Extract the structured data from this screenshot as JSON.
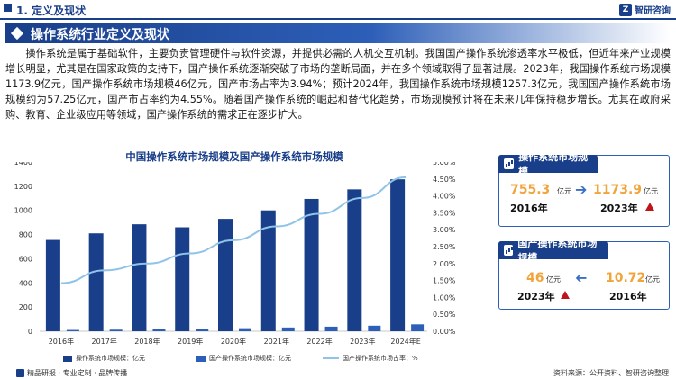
{
  "header": {
    "section": "1. 定义及现状",
    "brand": "智研咨询"
  },
  "title": "操作系统行业定义及现状",
  "paragraph": "操作系统是属于基础软件，主要负责管理硬件与软件资源，并提供必需的人机交互机制。我国国产操作系统渗透率水平极低，但近年来产业规模增长明显，尤其是在国家政策的支持下，国产操作系统逐渐突破了市场的垄断局面，并在多个领域取得了显著进展。2023年，我国操作系统市场规模1173.9亿元，国产操作系统市场规模46亿元，国产市场占率为3.94%；预计2024年，我国操作系统市场规模1257.3亿元，我国国产操作系统市场规模约为57.25亿元，国产市占率约为4.55%。随着国产操作系统的崛起和替代化趋势，市场规模预计将在未来几年保持稳步增长。尤其在政府采购、教育、企业级应用等领域，国产操作系统的需求正在逐步扩大。",
  "chart_data": {
    "type": "bar",
    "title": "中国操作系统市场规模及国产操作系统市场规模",
    "categories": [
      "2016年",
      "2017年",
      "2018年",
      "2019年",
      "2020年",
      "2021年",
      "2022年",
      "2023年",
      "2024年E"
    ],
    "series": [
      {
        "name": "操作系统市场规模：亿元",
        "type": "bar",
        "axis": "left",
        "color": "#1a3f8a",
        "values": [
          755.3,
          810,
          885,
          860,
          930,
          1000,
          1095,
          1173.9,
          1257.3
        ]
      },
      {
        "name": "国产操作系统市场规模：亿元",
        "type": "bar",
        "axis": "left",
        "color": "#2d5fb8",
        "values": [
          10.72,
          13,
          16,
          20,
          25,
          31,
          38,
          46,
          57.25
        ]
      },
      {
        "name": "国产操作系统市场占率：%",
        "type": "line",
        "axis": "right",
        "color": "#8fc3e8",
        "values": [
          1.42,
          1.8,
          2.0,
          2.3,
          2.69,
          3.1,
          3.47,
          3.94,
          4.55
        ]
      }
    ],
    "ylim_left": [
      0,
      1400
    ],
    "yticks_left": [
      "0",
      "200",
      "400",
      "600",
      "800",
      "1000",
      "1200",
      "1400"
    ],
    "ylim_right": [
      0,
      5
    ],
    "yticks_right": [
      "0.00%",
      "0.50%",
      "1.00%",
      "1.50%",
      "2.00%",
      "2.50%",
      "3.00%",
      "3.50%",
      "4.00%",
      "4.50%",
      "5.00%"
    ],
    "grid": false,
    "legend_position": "bottom"
  },
  "panels": [
    {
      "title": "操作系统市场规模",
      "from_value": "755.3",
      "from_unit": "亿元",
      "from_year": "2016年",
      "to_value": "1173.9",
      "to_unit": "亿元",
      "to_year": "2023年"
    },
    {
      "title": "国产操作系统市场规模",
      "from_value": "46",
      "from_unit": "亿元",
      "from_year": "2023年",
      "to_value": "10.72",
      "to_unit": "亿元",
      "to_year": "2016年"
    }
  ],
  "footer": {
    "left": "精品研报 · 专业定制 · 品牌传播",
    "source": "资料来源：公开资料、智研咨询整理"
  },
  "colors": {
    "primary": "#1a3f8a",
    "accent": "#2d5fb8",
    "highlight": "#f0a43a",
    "up_arrow": "#c0141b",
    "line": "#8fc3e8"
  }
}
